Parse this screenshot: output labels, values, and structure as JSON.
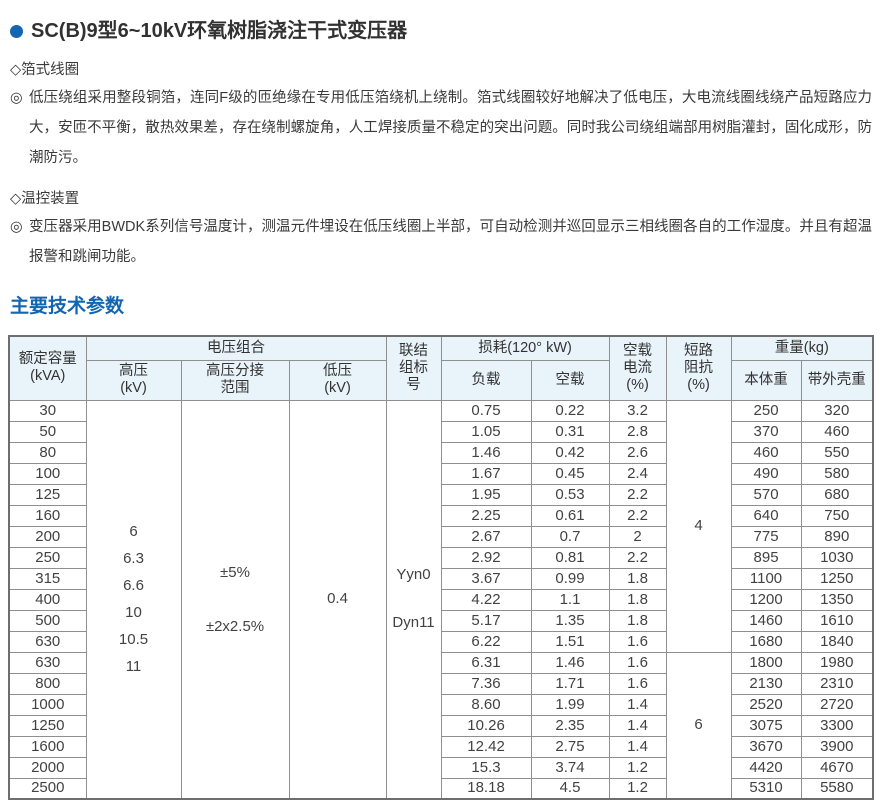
{
  "colors": {
    "accent": "#1266b1",
    "header_bg": "#e9f3fa",
    "table_border": "#8f8f8f"
  },
  "header": {
    "title": "SC(B)9型6~10kV环氧树脂浇注干式变压器"
  },
  "features": [
    {
      "marker": "◇",
      "heading": "箔式线圈",
      "bullet": "◎",
      "text": "低压绕组采用整段铜箔，连同F级的匝绝缘在专用低压箔绕机上绕制。箔式线圈较好地解决了低电压，大电流线圈线绕产品短路应力大，安匝不平衡，散热效果差，存在绕制螺旋角，人工焊接质量不稳定的突出问题。同时我公司绕组端部用树脂灌封，固化成形，防潮防污。"
    },
    {
      "marker": "◇",
      "heading": "温控装置",
      "bullet": "◎",
      "text": "变压器采用BWDK系列信号温度计，测温元件埋设在低压线圈上半部，可自动检测并巡回显示三相线圈各自的工作湿度。并且有超温报警和跳闸功能。"
    }
  ],
  "params_title": "主要技术参数",
  "table": {
    "headers": {
      "capacity": "额定容量\n(kVA)",
      "voltage_combo": "电压组合",
      "hv": "高压\n(kV)",
      "tap_range": "高压分接\n范围",
      "lv": "低压\n(kV)",
      "vector": "联结\n组标\n号",
      "loss": "损耗(120° kW)",
      "load_loss": "负载",
      "noload_loss": "空载",
      "noload_current": "空载\n电流\n(%)",
      "impedance": "短路\n阻抗\n(%)",
      "weight": "重量(kg)",
      "body_weight": "本体重",
      "shell_weight": "带外壳重"
    },
    "merged": {
      "hv_values": "6\n6.3\n6.6\n10\n10.5\n11",
      "tap_values": "±5%\n\n±2x2.5%",
      "lv_value": "0.4",
      "vector_values": "Yyn0\n\nDyn11",
      "impedance_groups": [
        {
          "value": "4",
          "start": 0,
          "span": 12
        },
        {
          "value": "6",
          "start": 12,
          "span": 7
        }
      ]
    },
    "rows": [
      [
        "30",
        "0.75",
        "0.22",
        "3.2",
        "250",
        "320"
      ],
      [
        "50",
        "1.05",
        "0.31",
        "2.8",
        "370",
        "460"
      ],
      [
        "80",
        "1.46",
        "0.42",
        "2.6",
        "460",
        "550"
      ],
      [
        "100",
        "1.67",
        "0.45",
        "2.4",
        "490",
        "580"
      ],
      [
        "125",
        "1.95",
        "0.53",
        "2.2",
        "570",
        "680"
      ],
      [
        "160",
        "2.25",
        "0.61",
        "2.2",
        "640",
        "750"
      ],
      [
        "200",
        "2.67",
        "0.7",
        "2",
        "775",
        "890"
      ],
      [
        "250",
        "2.92",
        "0.81",
        "2.2",
        "895",
        "1030"
      ],
      [
        "315",
        "3.67",
        "0.99",
        "1.8",
        "1100",
        "1250"
      ],
      [
        "400",
        "4.22",
        "1.1",
        "1.8",
        "1200",
        "1350"
      ],
      [
        "500",
        "5.17",
        "1.35",
        "1.8",
        "1460",
        "1610"
      ],
      [
        "630",
        "6.22",
        "1.51",
        "1.6",
        "1680",
        "1840"
      ],
      [
        "630",
        "6.31",
        "1.46",
        "1.6",
        "1800",
        "1980"
      ],
      [
        "800",
        "7.36",
        "1.71",
        "1.6",
        "2130",
        "2310"
      ],
      [
        "1000",
        "8.60",
        "1.99",
        "1.4",
        "2520",
        "2720"
      ],
      [
        "1250",
        "10.26",
        "2.35",
        "1.4",
        "3075",
        "3300"
      ],
      [
        "1600",
        "12.42",
        "2.75",
        "1.4",
        "3670",
        "3900"
      ],
      [
        "2000",
        "15.3",
        "3.74",
        "1.2",
        "4420",
        "4670"
      ],
      [
        "2500",
        "18.18",
        "4.5",
        "1.2",
        "5310",
        "5580"
      ]
    ]
  }
}
